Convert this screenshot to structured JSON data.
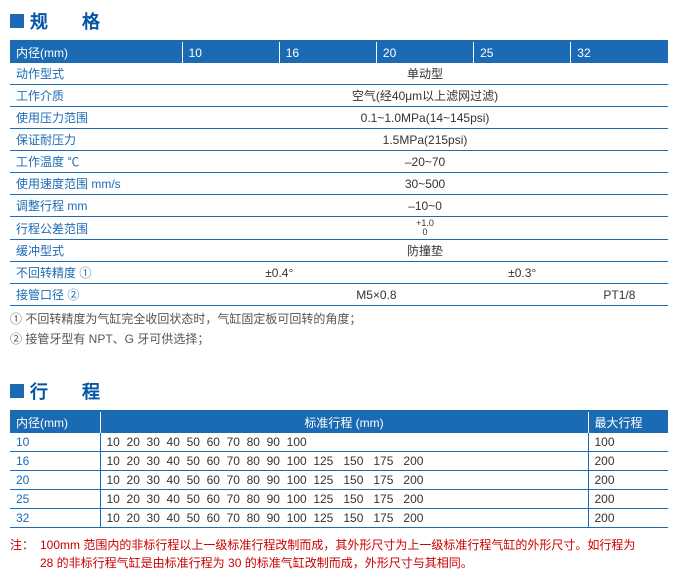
{
  "spec": {
    "title": "规　格",
    "header": {
      "label": "内径(mm)",
      "cols": [
        "10",
        "16",
        "20",
        "25",
        "32"
      ]
    },
    "rows": [
      {
        "label": "动作型式",
        "spans": [
          {
            "colspan": 5,
            "value": "单动型"
          }
        ]
      },
      {
        "label": "工作介质",
        "spans": [
          {
            "colspan": 5,
            "value": "空气(经40μm以上滤网过滤)"
          }
        ]
      },
      {
        "label": "使用压力范围",
        "spans": [
          {
            "colspan": 5,
            "value": "0.1~1.0MPa(14~145psi)"
          }
        ]
      },
      {
        "label": "保证耐压力",
        "spans": [
          {
            "colspan": 5,
            "value": "1.5MPa(215psi)"
          }
        ]
      },
      {
        "label": "工作温度 ℃",
        "spans": [
          {
            "colspan": 5,
            "value": "–20~70"
          }
        ]
      },
      {
        "label": "使用速度范围 mm/s",
        "spans": [
          {
            "colspan": 5,
            "value": "30~500"
          }
        ]
      },
      {
        "label": "调整行程 mm",
        "spans": [
          {
            "colspan": 5,
            "value": "–10~0"
          }
        ]
      },
      {
        "label": "行程公差范围",
        "spans": [
          {
            "colspan": 5,
            "value": "+1.0\n0",
            "small": true
          }
        ]
      },
      {
        "label": "缓冲型式",
        "spans": [
          {
            "colspan": 5,
            "value": "防撞垫"
          }
        ]
      },
      {
        "label": "不回转精度 ①",
        "spans": [
          {
            "colspan": 2,
            "value": "±0.4°"
          },
          {
            "colspan": 3,
            "value": "±0.3°"
          }
        ]
      },
      {
        "label": "接管口径 ②",
        "spans": [
          {
            "colspan": 4,
            "value": "M5×0.8"
          },
          {
            "colspan": 1,
            "value": "PT1/8"
          }
        ]
      }
    ],
    "notes": [
      "① 不回转精度为气缸完全收回状态时，气缸固定板可回转的角度；",
      "② 接管牙型有 NPT、G 牙可供选择；"
    ]
  },
  "stroke": {
    "title": "行　程",
    "header": {
      "label": "内径(mm)",
      "mid": "标准行程 (mm)",
      "right": "最大行程"
    },
    "rows": [
      {
        "bore": "10",
        "std": "10  20  30  40  50  60  70  80  90  100",
        "max": "100"
      },
      {
        "bore": "16",
        "std": "10  20  30  40  50  60  70  80  90  100  125   150   175   200",
        "max": "200"
      },
      {
        "bore": "20",
        "std": "10  20  30  40  50  60  70  80  90  100  125   150   175   200",
        "max": "200"
      },
      {
        "bore": "25",
        "std": "10  20  30  40  50  60  70  80  90  100  125   150   175   200",
        "max": "200"
      },
      {
        "bore": "32",
        "std": "10  20  30  40  50  60  70  80  90  100  125   150   175   200",
        "max": "200"
      }
    ],
    "footer": {
      "label": "注：",
      "text": "100mm 范围内的非标行程以上一级标准行程改制而成，其外形尺寸为上一级标准行程气缸的外形尺寸。如行程为 28 的非标行程气缸是由标准行程为 30 的标准气缸改制而成，外形尺寸与其相同。"
    }
  }
}
